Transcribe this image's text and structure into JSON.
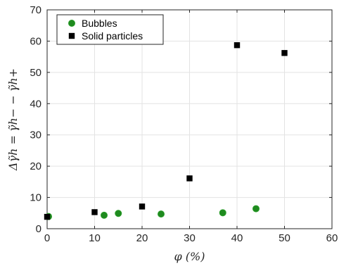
{
  "chart_data": {
    "type": "scatter",
    "title": "",
    "xlabel": "φ (%)",
    "ylabel": "Δγ̃h = γ̃h− − γ̃h+",
    "xlim": [
      0,
      60
    ],
    "ylim": [
      0,
      70
    ],
    "xticks": [
      "0",
      "10",
      "20",
      "30",
      "40",
      "50",
      "60"
    ],
    "yticks": [
      "0",
      "10",
      "20",
      "30",
      "40",
      "50",
      "60",
      "70"
    ],
    "grid": true,
    "legend_position": "top-left",
    "series": [
      {
        "name": "Bubbles",
        "marker": "circle",
        "color": "#1f8a1f",
        "points": [
          {
            "x": 0.3,
            "y": 3.9
          },
          {
            "x": 12,
            "y": 4.3
          },
          {
            "x": 15,
            "y": 4.9
          },
          {
            "x": 24,
            "y": 4.7
          },
          {
            "x": 37,
            "y": 5.1
          },
          {
            "x": 44,
            "y": 6.4
          }
        ]
      },
      {
        "name": "Solid particles",
        "marker": "square",
        "color": "#000000",
        "points": [
          {
            "x": 0,
            "y": 3.8
          },
          {
            "x": 10,
            "y": 5.3
          },
          {
            "x": 20,
            "y": 7.1
          },
          {
            "x": 30,
            "y": 16.1
          },
          {
            "x": 40,
            "y": 58.7
          },
          {
            "x": 50,
            "y": 56.2
          }
        ]
      }
    ]
  }
}
